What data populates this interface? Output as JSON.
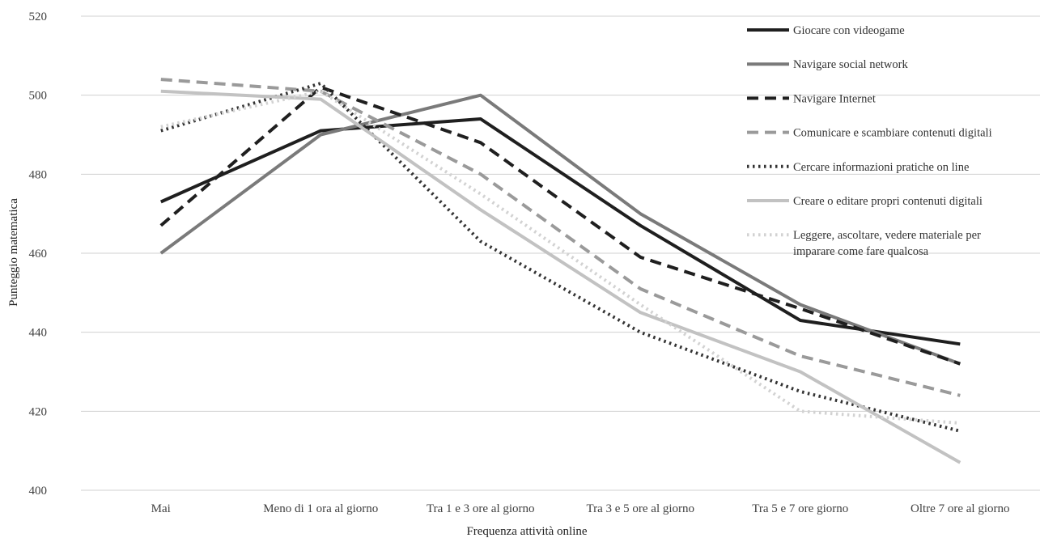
{
  "chart_data": {
    "type": "line",
    "title": "",
    "xlabel": "Frequenza attività online",
    "ylabel": "Punteggio matematica",
    "ylim": [
      400,
      520
    ],
    "yticks": [
      400,
      420,
      440,
      460,
      480,
      500,
      520
    ],
    "grid": "horizontal",
    "legend_position": "top-right",
    "categories": [
      "Mai",
      "Meno di 1 ora al giorno",
      "Tra 1 e 3 ore al giorno",
      "Tra  3 e  5 ore al giorno",
      "Tra  5 e  7 ore giorno",
      "Oltre 7 ore al giorno"
    ],
    "series": [
      {
        "name": "Giocare con videogame",
        "values": [
          473,
          491,
          494,
          467,
          443,
          437
        ],
        "color": "#1f1f1f",
        "style": "solid"
      },
      {
        "name": "Navigare social network",
        "values": [
          460,
          490,
          500,
          470,
          447,
          432
        ],
        "color": "#7a7a7a",
        "style": "solid"
      },
      {
        "name": "Navigare Internet",
        "values": [
          467,
          502,
          488,
          459,
          446,
          432
        ],
        "color": "#1f1f1f",
        "style": "dashed"
      },
      {
        "name": "Comunicare e scambiare contenuti digitali",
        "values": [
          504,
          501,
          480,
          451,
          434,
          424
        ],
        "color": "#9a9a9a",
        "style": "dashed"
      },
      {
        "name": "Cercare informazioni pratiche on line",
        "values": [
          491,
          503,
          463,
          440,
          425,
          415
        ],
        "color": "#333333",
        "style": "dotted"
      },
      {
        "name": "Creare o editare propri contenuti digitali",
        "values": [
          501,
          499,
          471,
          445,
          430,
          407
        ],
        "color": "#c2c2c2",
        "style": "solid"
      },
      {
        "name": "Leggere, ascoltare, vedere materiale per imparare come fare qualcosa",
        "legend_lines": [
          "Leggere, ascoltare, vedere materiale per",
          "imparare come fare qualcosa"
        ],
        "values": [
          492,
          501,
          475,
          447,
          420,
          417
        ],
        "color": "#d2d2d2",
        "style": "dotted"
      }
    ]
  }
}
